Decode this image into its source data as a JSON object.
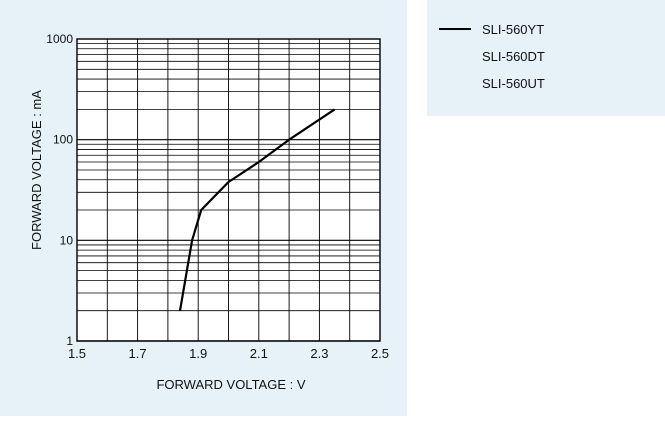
{
  "colors": {
    "panel_bg": "#e6f2f8",
    "plot_bg": "#ffffff",
    "grid": "#000000",
    "series_line": "#000000"
  },
  "legend": {
    "items": [
      {
        "label": "SLI-560YT",
        "has_line": true
      },
      {
        "label": "SLI-560DT",
        "has_line": false
      },
      {
        "label": "SLI-560UT",
        "has_line": false
      }
    ]
  },
  "chart_data": {
    "type": "line",
    "xlabel": "FORWARD VOLTAGE : V",
    "ylabel": "FORWARD VOLTAGE : mA",
    "xlim": [
      1.5,
      2.5
    ],
    "ylim": [
      1,
      1000
    ],
    "y_scale": "log",
    "grid": true,
    "legend_position": "right",
    "x_ticks": [
      "1.5",
      "1.7",
      "1.9",
      "2.1",
      "2.3",
      "2.5"
    ],
    "y_ticks": [
      "1",
      "10",
      "100",
      "1000"
    ],
    "series": [
      {
        "name": "SLI-560YT",
        "x": [
          1.84,
          1.88,
          1.91,
          2.0,
          2.1,
          2.2,
          2.35
        ],
        "y": [
          2,
          10,
          20,
          38,
          60,
          100,
          200
        ]
      }
    ]
  }
}
